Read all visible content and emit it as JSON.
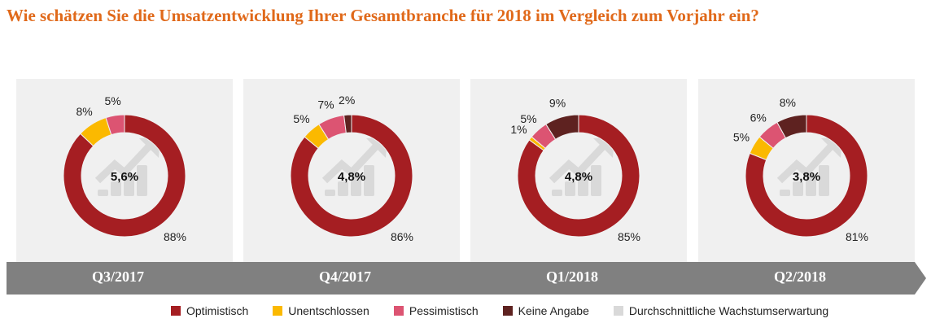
{
  "title": "Wie schätzen Sie die Umsatzentwicklung Ihrer Gesamtbranche für 2018 im Vergleich zum Vorjahr ein?",
  "chart_data": {
    "type": "donut",
    "categories": [
      "Optimistisch",
      "Unentschlossen",
      "Pessimistisch",
      "Keine Angabe"
    ],
    "colors": [
      "#a51e22",
      "#fbb900",
      "#dc5472",
      "#5e2220"
    ],
    "center_legend": {
      "label": "Durchschnittliche Wachstumserwartung",
      "color": "#d9d9d9"
    },
    "charts": [
      {
        "period": "Q3/2017",
        "center": "5,6%",
        "values": [
          88,
          8,
          5,
          0
        ],
        "labels": [
          "88%",
          "8%",
          "5%",
          ""
        ]
      },
      {
        "period": "Q4/2017",
        "center": "4,8%",
        "values": [
          86,
          5,
          7,
          2
        ],
        "labels": [
          "86%",
          "5%",
          "7%",
          "2%"
        ]
      },
      {
        "period": "Q1/2018",
        "center": "4,8%",
        "values": [
          85,
          1,
          5,
          9
        ],
        "labels": [
          "85%",
          "1%",
          "5%",
          "9%"
        ]
      },
      {
        "period": "Q2/2018",
        "center": "3,8%",
        "values": [
          81,
          5,
          6,
          8
        ],
        "labels": [
          "81%",
          "5%",
          "6%",
          "8%"
        ]
      }
    ]
  }
}
